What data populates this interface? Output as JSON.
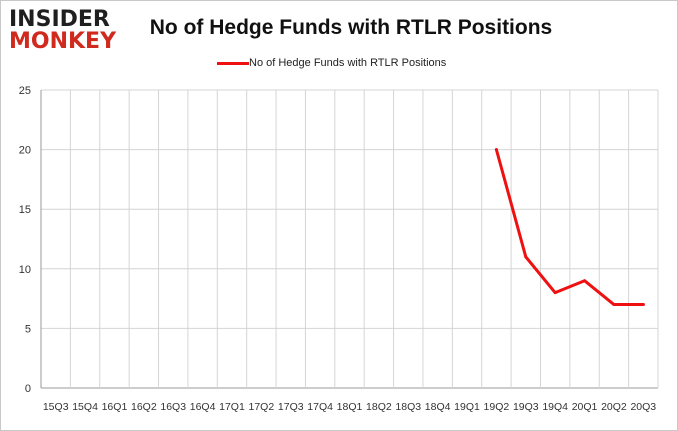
{
  "logo": {
    "line1": "INSIDER",
    "line2": "MONKEY"
  },
  "colors": {
    "series": "#ee1111",
    "grid": "#d4d4d4",
    "axis": "#999999",
    "logo_red": "#d02a1e"
  },
  "chart_data": {
    "type": "line",
    "title": "No of Hedge Funds with RTLR Positions",
    "xlabel": "",
    "ylabel": "",
    "ylim": [
      0,
      25
    ],
    "yticks": [
      0,
      5,
      10,
      15,
      20,
      25
    ],
    "grid": true,
    "legend_position": "top-center",
    "categories": [
      "15Q3",
      "15Q4",
      "16Q1",
      "16Q2",
      "16Q3",
      "16Q4",
      "17Q1",
      "17Q2",
      "17Q3",
      "17Q4",
      "18Q1",
      "18Q2",
      "18Q3",
      "18Q4",
      "19Q1",
      "19Q2",
      "19Q3",
      "19Q4",
      "20Q1",
      "20Q2",
      "20Q3"
    ],
    "series": [
      {
        "name": "No of Hedge Funds with RTLR Positions",
        "color": "#ee1111",
        "values": [
          null,
          null,
          null,
          null,
          null,
          null,
          null,
          null,
          null,
          null,
          null,
          null,
          null,
          null,
          null,
          20,
          11,
          8,
          9,
          7,
          7
        ]
      }
    ]
  }
}
